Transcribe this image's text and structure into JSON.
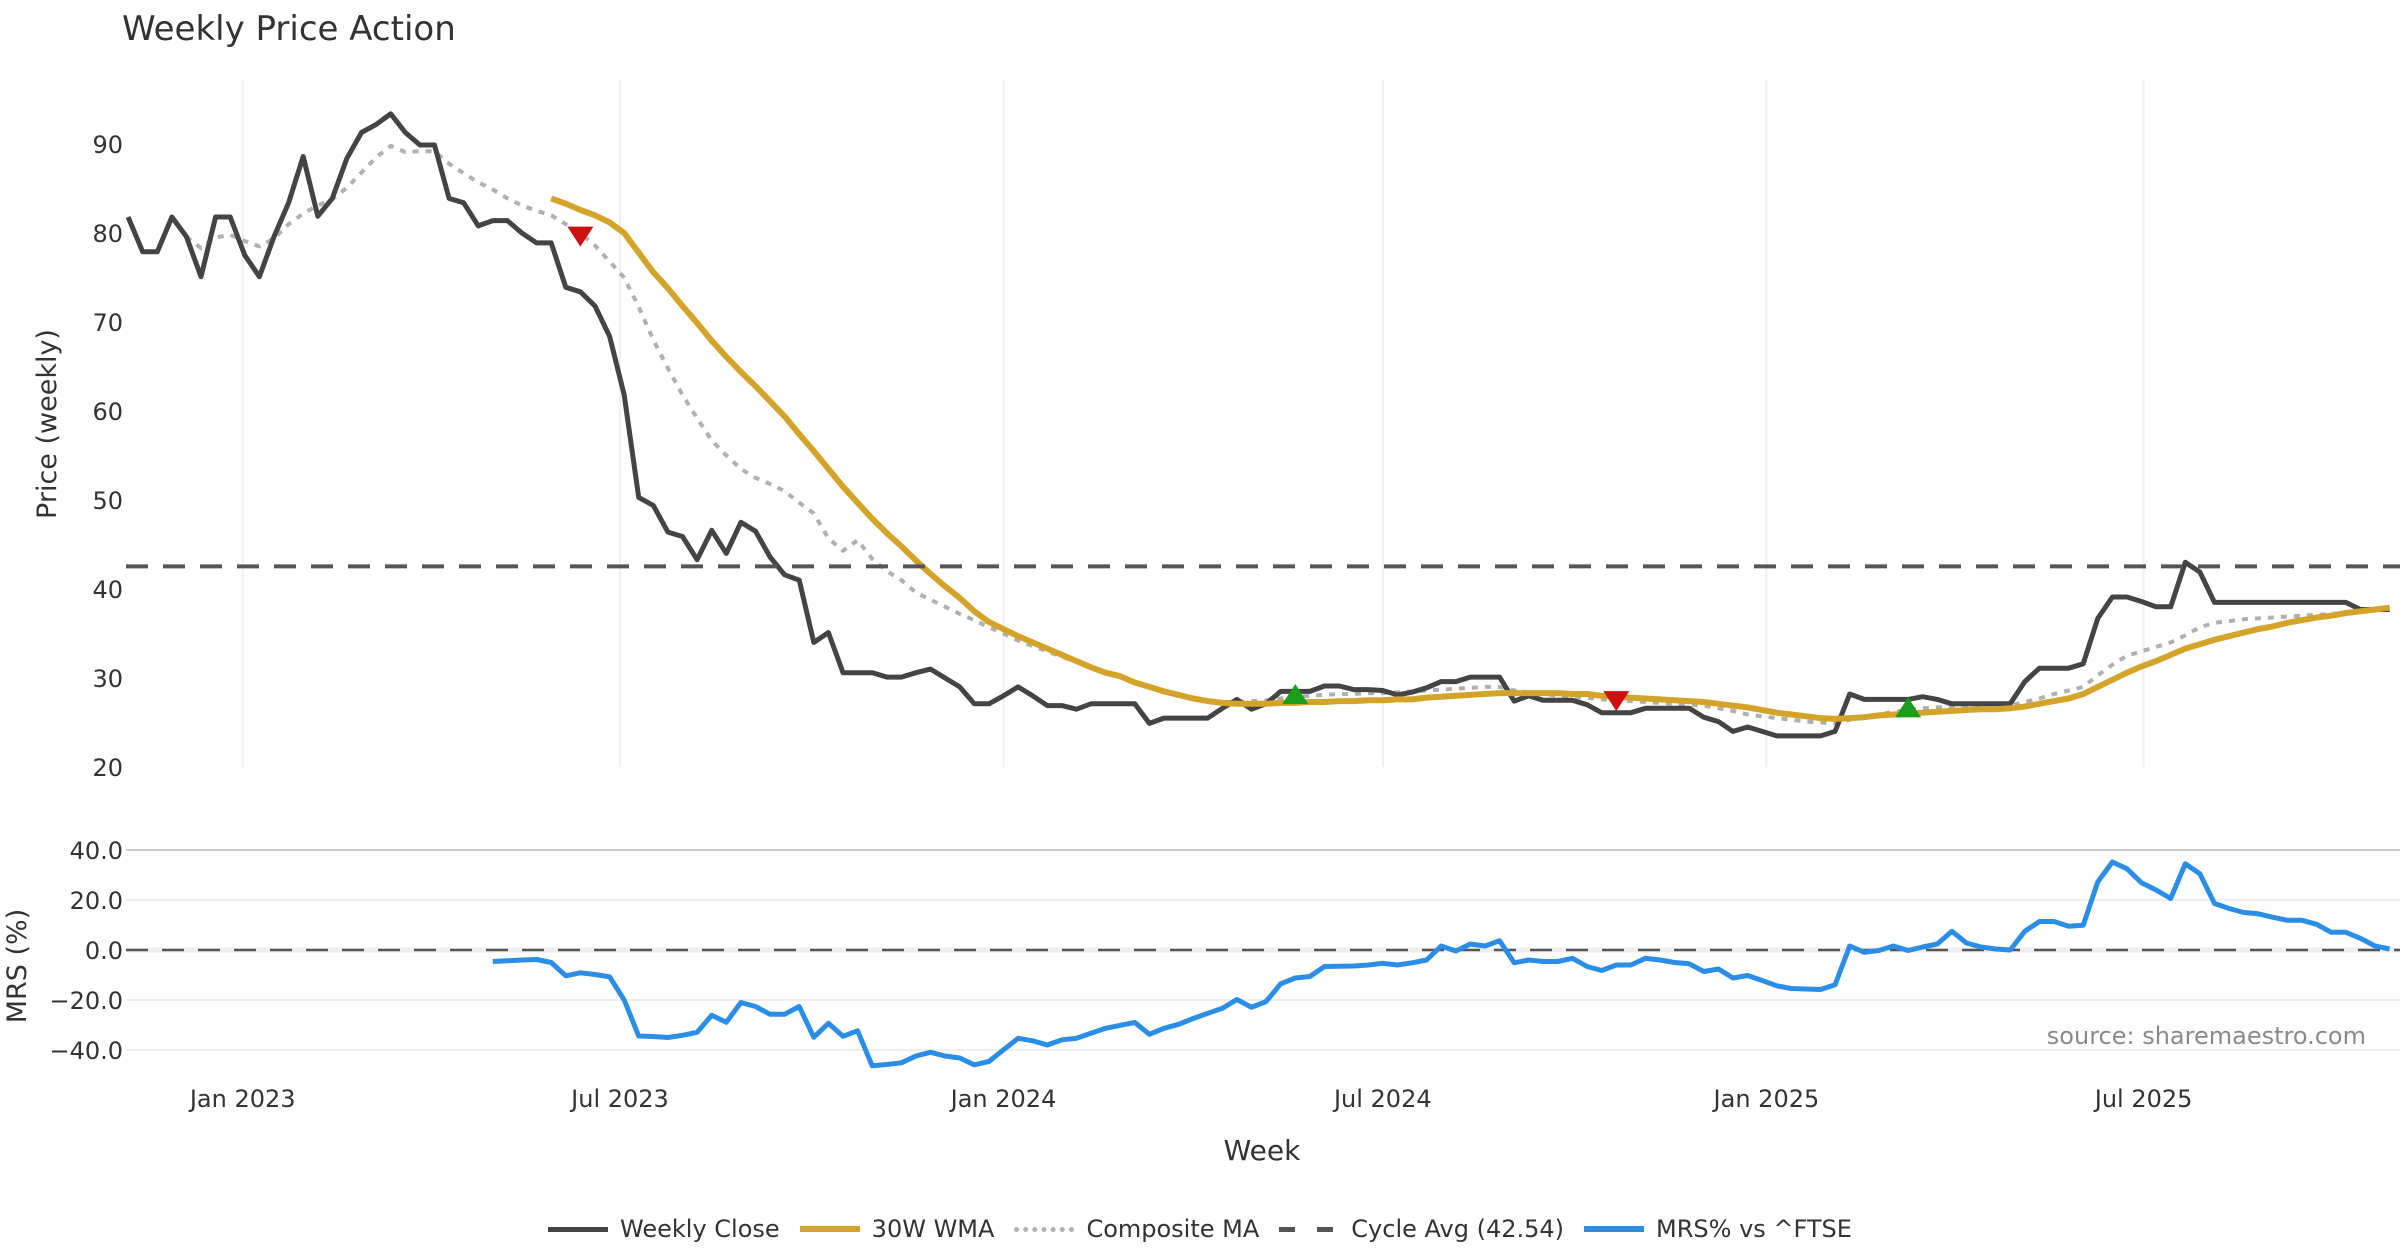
{
  "chart_data": [
    {
      "id": "price",
      "type": "line",
      "title": "Weekly Price Action",
      "xlabel": "Week",
      "ylabel": "Price (weekly)",
      "x_start": "2022-11-07",
      "x_step_days": 7,
      "xlim": [
        "2022-11-06",
        "2025-11-01"
      ],
      "ylim": [
        20,
        97.2
      ],
      "yticks": [
        20,
        30,
        40,
        50,
        60,
        70,
        80,
        90
      ],
      "ytick_labels": [
        "20",
        "30",
        "40",
        "50",
        "60",
        "70",
        "80",
        "90"
      ],
      "grid": "x-only",
      "series": [
        {
          "name": "Weekly Close",
          "color": "#444444",
          "style": "solid",
          "start_index": 0,
          "values": [
            81.8,
            77.9,
            77.9,
            81.8,
            79.6,
            75.1,
            81.8,
            81.8,
            77.5,
            75.1,
            79.6,
            83.4,
            88.6,
            81.9,
            83.9,
            88.4,
            91.3,
            92.2,
            93.4,
            91.3,
            89.9,
            89.9,
            83.9,
            83.4,
            80.8,
            81.4,
            81.4,
            80.0,
            78.9,
            78.9,
            73.9,
            73.4,
            71.8,
            68.4,
            61.8,
            50.3,
            49.4,
            46.4,
            45.9,
            43.3,
            46.6,
            44.0,
            47.5,
            46.5,
            43.6,
            41.6,
            41.0,
            34.0,
            35.1,
            30.6,
            30.6,
            30.6,
            30.1,
            30.1,
            30.6,
            31.0,
            30.0,
            29.0,
            27.1,
            27.1,
            28.0,
            29.0,
            28.0,
            26.9,
            26.9,
            26.5,
            27.1,
            27.1,
            27.1,
            27.1,
            24.9,
            25.5,
            25.5,
            25.5,
            25.5,
            26.6,
            27.6,
            26.5,
            27.1,
            28.5,
            28.5,
            28.5,
            29.1,
            29.1,
            28.7,
            28.7,
            28.6,
            28.1,
            28.4,
            28.9,
            29.6,
            29.6,
            30.1,
            30.1,
            30.1,
            27.4,
            28.0,
            27.5,
            27.5,
            27.5,
            27.0,
            26.1,
            26.1,
            26.1,
            26.6,
            26.6,
            26.6,
            26.6,
            25.6,
            25.1,
            24.0,
            24.5,
            24.0,
            23.5,
            23.5,
            23.5,
            23.5,
            24.0,
            28.2,
            27.6,
            27.6,
            27.6,
            27.6,
            27.9,
            27.6,
            27.1,
            27.1,
            27.1,
            27.1,
            27.1,
            29.6,
            31.1,
            31.1,
            31.1,
            31.6,
            36.7,
            39.1,
            39.1,
            38.6,
            38.0,
            38.0,
            43.0,
            41.9,
            38.5,
            38.5,
            38.5,
            38.5,
            38.5,
            38.5,
            38.5,
            38.5,
            38.5,
            38.5,
            37.7,
            37.7,
            37.7
          ]
        },
        {
          "name": "30W WMA",
          "color": "#D4A32A",
          "style": "solid",
          "start_index": 29,
          "values": [
            83.9,
            83.3,
            82.6,
            82.0,
            81.2,
            80.0,
            77.8,
            75.6,
            73.8,
            71.8,
            69.9,
            67.9,
            66.1,
            64.4,
            62.8,
            61.1,
            59.4,
            57.4,
            55.5,
            53.5,
            51.5,
            49.7,
            47.9,
            46.3,
            44.8,
            43.2,
            41.7,
            40.3,
            39.0,
            37.5,
            36.3,
            35.5,
            34.7,
            34.0,
            33.3,
            32.6,
            31.9,
            31.2,
            30.6,
            30.2,
            29.5,
            29.0,
            28.5,
            28.1,
            27.7,
            27.4,
            27.2,
            27.1,
            27.1,
            27.1,
            27.2,
            27.2,
            27.3,
            27.3,
            27.4,
            27.4,
            27.5,
            27.5,
            27.6,
            27.6,
            27.8,
            27.9,
            28.0,
            28.1,
            28.2,
            28.3,
            28.3,
            28.3,
            28.3,
            28.3,
            28.2,
            28.2,
            28.0,
            27.9,
            27.8,
            27.7,
            27.6,
            27.5,
            27.4,
            27.3,
            27.1,
            26.9,
            26.7,
            26.4,
            26.1,
            25.9,
            25.7,
            25.5,
            25.4,
            25.5,
            25.6,
            25.8,
            25.9,
            26.0,
            26.1,
            26.2,
            26.3,
            26.4,
            26.5,
            26.5,
            26.6,
            26.8,
            27.1,
            27.4,
            27.7,
            28.2,
            29.0,
            29.8,
            30.6,
            31.3,
            31.9,
            32.6,
            33.3,
            33.8,
            34.3,
            34.7,
            35.1,
            35.5,
            35.8,
            36.2,
            36.5,
            36.8,
            37.0,
            37.3,
            37.5,
            37.7,
            37.9
          ]
        },
        {
          "name": "Composite MA",
          "color": "#B0B0B0",
          "style": "dotted",
          "start_index": 4,
          "values": [
            79.6,
            78.3,
            79.5,
            79.8,
            79.1,
            78.5,
            79.4,
            81.0,
            82.2,
            83.1,
            83.8,
            85.1,
            86.8,
            88.5,
            89.8,
            89.1,
            89.2,
            89.2,
            87.8,
            86.7,
            85.7,
            84.9,
            83.9,
            83.1,
            82.5,
            82.0,
            81.0,
            80.0,
            78.6,
            76.8,
            75.0,
            71.7,
            68.0,
            64.8,
            61.8,
            59.2,
            56.7,
            55.0,
            53.5,
            52.5,
            51.8,
            51.0,
            49.7,
            48.5,
            45.7,
            44.3,
            45.5,
            43.4,
            42.0,
            41.0,
            39.6,
            38.8,
            38.0,
            37.2,
            36.5,
            35.7,
            35.0,
            34.2,
            33.6,
            33.0,
            32.4,
            31.8,
            31.2,
            30.6,
            30.2,
            29.6,
            29.0,
            28.5,
            28.1,
            27.7,
            27.4,
            27.3,
            27.3,
            27.4,
            27.5,
            27.7,
            27.9,
            28.0,
            28.1,
            28.2,
            28.2,
            28.3,
            28.3,
            28.4,
            28.5,
            28.6,
            28.7,
            28.8,
            28.9,
            29.0,
            29.0,
            28.6,
            28.4,
            28.2,
            28.0,
            27.9,
            27.8,
            27.6,
            27.5,
            27.4,
            27.3,
            27.2,
            27.1,
            27.0,
            26.9,
            26.6,
            26.3,
            25.9,
            25.7,
            25.5,
            25.3,
            25.1,
            25.0,
            24.9,
            25.3,
            25.6,
            25.9,
            26.2,
            26.4,
            26.6,
            26.7,
            26.8,
            26.9,
            26.9,
            26.9,
            26.9,
            27.3,
            27.7,
            28.2,
            28.6,
            29.0,
            30.3,
            31.5,
            32.5,
            33.0,
            33.5,
            34.0,
            34.8,
            35.7,
            36.2,
            36.4,
            36.6,
            36.7,
            36.8,
            36.9,
            37.0,
            37.1,
            37.2,
            37.3,
            37.4,
            37.6,
            37.7
          ]
        },
        {
          "name": "Cycle Avg (42.54)",
          "color": "#555555",
          "style": "dashed",
          "constant": 42.54
        }
      ],
      "signals": [
        {
          "type": "sell",
          "shape": "triangle-down",
          "color": "#CC1111",
          "week_index": 31,
          "value": 79.6
        },
        {
          "type": "buy",
          "shape": "triangle-up",
          "color": "#1A9E1A",
          "week_index": 80,
          "value": 28.2
        },
        {
          "type": "sell",
          "shape": "triangle-down",
          "color": "#CC1111",
          "week_index": 102,
          "value": 27.4
        },
        {
          "type": "buy",
          "shape": "triangle-up",
          "color": "#1A9E1A",
          "week_index": 122,
          "value": 26.7
        }
      ]
    },
    {
      "id": "mrs",
      "type": "line",
      "title": "",
      "xlabel": "Week",
      "ylabel": "MRS (%)",
      "x_start": "2022-11-07",
      "x_step_days": 7,
      "xlim": [
        "2022-11-06",
        "2025-11-01"
      ],
      "ylim": [
        -48,
        40
      ],
      "yticks": [
        -40,
        -20,
        0,
        20,
        40
      ],
      "ytick_labels": [
        "−40.0",
        "−20.0",
        "0.0",
        "20.0",
        "40.0"
      ],
      "xtick_dates": [
        "2023-01-01",
        "2023-07-01",
        "2024-01-01",
        "2024-07-01",
        "2025-01-01",
        "2025-07-01"
      ],
      "xtick_labels": [
        "Jan 2023",
        "Jul 2023",
        "Jan 2024",
        "Jul 2024",
        "Jan 2025",
        "Jul 2025"
      ],
      "grid": "y",
      "zero_line": {
        "value": 0,
        "style": "dashed",
        "color": "#555555"
      },
      "series": [
        {
          "name": "MRS% vs ^FTSE",
          "color": "#2B8EE6",
          "style": "solid",
          "start_index": 25,
          "values": [
            -4.6,
            -4.3,
            -4.0,
            -3.8,
            -5.0,
            -10.3,
            -9.1,
            -9.8,
            -10.7,
            -20.0,
            -34.4,
            -34.6,
            -35.0,
            -34.1,
            -32.9,
            -26.1,
            -28.9,
            -21.0,
            -22.6,
            -25.7,
            -25.7,
            -22.6,
            -34.9,
            -29.3,
            -34.5,
            -32.3,
            -46.3,
            -45.8,
            -45.1,
            -42.4,
            -40.9,
            -42.4,
            -43.2,
            -45.9,
            -44.6,
            -39.9,
            -35.3,
            -36.3,
            -38.0,
            -35.9,
            -35.3,
            -33.3,
            -31.3,
            -30.1,
            -29.0,
            -33.7,
            -31.3,
            -29.7,
            -27.4,
            -25.3,
            -23.3,
            -19.8,
            -22.9,
            -20.6,
            -13.5,
            -11.2,
            -10.6,
            -6.6,
            -6.5,
            -6.4,
            -6.0,
            -5.3,
            -6.0,
            -5.1,
            -4.0,
            1.6,
            -0.4,
            2.4,
            1.6,
            3.7,
            -5.1,
            -4.0,
            -4.6,
            -4.6,
            -3.3,
            -6.6,
            -8.2,
            -6.0,
            -6.0,
            -3.3,
            -4.0,
            -5.0,
            -5.5,
            -8.6,
            -7.6,
            -11.2,
            -10.2,
            -12.2,
            -14.3,
            -15.4,
            -15.6,
            -15.8,
            -13.9,
            1.6,
            -0.9,
            -0.2,
            1.6,
            -0.2,
            1.2,
            2.4,
            7.5,
            2.8,
            1.2,
            0.4,
            0.0,
            7.5,
            11.4,
            11.4,
            9.5,
            9.9,
            27.3,
            35.2,
            32.5,
            26.9,
            24.0,
            20.6,
            34.5,
            30.5,
            18.6,
            16.6,
            15.0,
            14.5,
            13.1,
            11.9,
            11.9,
            10.3,
            7.1,
            7.1,
            4.7,
            1.6,
            0.4
          ]
        }
      ],
      "annotation": "source: sharemaestro.com"
    }
  ],
  "legend": {
    "placement": "bottom-center",
    "items": [
      {
        "label": "Weekly Close",
        "color": "#444444",
        "style": "solid"
      },
      {
        "label": "30W WMA",
        "color": "#D4A32A",
        "style": "solid"
      },
      {
        "label": "Composite MA",
        "color": "#B0B0B0",
        "style": "dotted"
      },
      {
        "label": "Cycle Avg (42.54)",
        "color": "#555555",
        "style": "dashed"
      },
      {
        "label": "MRS% vs ^FTSE",
        "color": "#2B8EE6",
        "style": "solid"
      }
    ]
  }
}
